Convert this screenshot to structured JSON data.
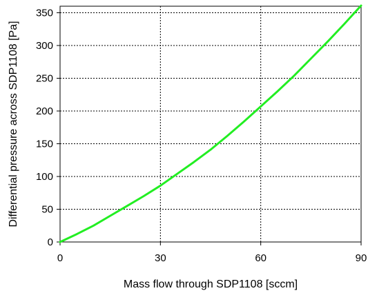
{
  "chart_data": {
    "type": "line",
    "title": "",
    "xlabel": "Mass flow through SDP1108 [sccm]",
    "ylabel": "Differential pressure across SDP1108  [Pa]",
    "xlim": [
      0,
      90
    ],
    "ylim": [
      0,
      360
    ],
    "x_ticks": [
      0,
      30,
      60,
      90
    ],
    "y_ticks": [
      0,
      50,
      100,
      150,
      200,
      250,
      300,
      350
    ],
    "grid": true,
    "legend": "none",
    "series": [
      {
        "color": "#22ee22",
        "x": [
          0,
          5,
          10,
          15,
          20,
          25,
          30,
          35,
          40,
          45,
          50,
          55,
          60,
          65,
          70,
          75,
          80,
          85,
          90
        ],
        "y": [
          0,
          12,
          25,
          40,
          55,
          70,
          86,
          104,
          122,
          141,
          162,
          184,
          207,
          230,
          254,
          280,
          306,
          333,
          361
        ]
      }
    ]
  }
}
